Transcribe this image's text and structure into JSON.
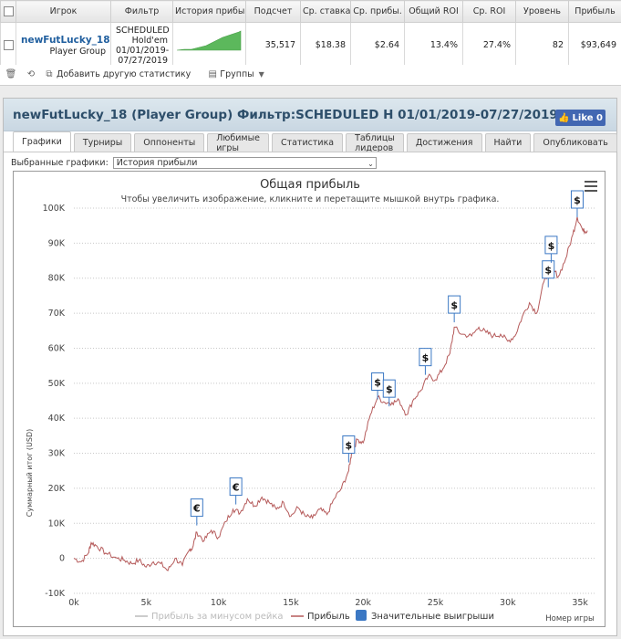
{
  "table": {
    "headers": [
      "Игрок",
      "Фильтр",
      "История прибы",
      "Подсчет",
      "Ср. ставка",
      "Ср. прибы.",
      "Общий ROI",
      "Ср. ROI",
      "Уровень",
      "Прибыль"
    ],
    "row": {
      "player_name": "newFutLucky_18",
      "player_type": "Player Group",
      "filter_line1": "SCHEDULED",
      "filter_line2": "Hold'em",
      "filter_line3": "01/01/2019-",
      "filter_line4": "07/27/2019",
      "count": "35,517",
      "avg_stake": "$18.38",
      "avg_profit": "$2.64",
      "total_roi": "13.4%",
      "avg_roi": "27.4%",
      "level": "82",
      "profit": "$93,649"
    }
  },
  "toolbar": {
    "add_stat_label": "Добавить другую статистику",
    "groups_label": "Группы"
  },
  "panel": {
    "title": "newFutLucky_18 (Player Group) Фильтр:SCHEDULED H 01/01/2019-07/27/2019",
    "like_label": "Like 0",
    "tabs": [
      "Графики",
      "Турниры",
      "Оппоненты",
      "Любимые игры",
      "Статистика",
      "Таблицы лидеров",
      "Достижения",
      "Найти",
      "Опубликовать"
    ],
    "selector_label": "Выбранные графики:",
    "selector_value": "История прибыли"
  },
  "chart_data": {
    "type": "line",
    "title": "Общая прибыль",
    "subtitle": "Чтобы увеличить изображение, кликните и перетащите мышкой внутрь графика.",
    "ylabel": "Суммарный итог (USD)",
    "xlabel": "Номер игры",
    "ylim": [
      -10000,
      100000
    ],
    "xlim": [
      0,
      36000
    ],
    "yticks": [
      -10000,
      0,
      10000,
      20000,
      30000,
      40000,
      50000,
      60000,
      70000,
      80000,
      90000,
      100000
    ],
    "ytick_labels": [
      "-10K",
      "0",
      "10K",
      "20K",
      "30K",
      "40K",
      "50K",
      "60K",
      "70K",
      "80K",
      "90K",
      "100K"
    ],
    "xticks": [
      0,
      5000,
      10000,
      15000,
      20000,
      25000,
      30000,
      35000
    ],
    "xtick_labels": [
      "0k",
      "5k",
      "10k",
      "15k",
      "20k",
      "25k",
      "30k",
      "35k"
    ],
    "grid": "horizontal dotted",
    "legend_placement": "bottom",
    "series": [
      {
        "name": "Прибыль за минусом рейка",
        "color": "#cccccc",
        "visible": false
      },
      {
        "name": "Прибыль",
        "color": "#b55a5a",
        "x": [
          0,
          500,
          1000,
          1200,
          1600,
          2200,
          3000,
          3500,
          4000,
          4500,
          5000,
          5500,
          6000,
          6500,
          7000,
          7500,
          8000,
          8200,
          8500,
          9000,
          9500,
          10000,
          10500,
          11000,
          11500,
          12000,
          12500,
          13000,
          13500,
          14000,
          14500,
          15000,
          15500,
          16000,
          16500,
          17000,
          17500,
          18000,
          18500,
          19000,
          19200,
          19600,
          20000,
          20500,
          21000,
          21500,
          22000,
          22500,
          23000,
          23500,
          24000,
          24500,
          25000,
          25500,
          26000,
          26300,
          26800,
          27500,
          28000,
          28500,
          29000,
          29500,
          30000,
          30500,
          31000,
          31500,
          32000,
          32500,
          33000,
          33500,
          34000,
          34500,
          34800,
          35200,
          35500
        ],
        "values": [
          0,
          -1000,
          1500,
          4500,
          3500,
          1500,
          0,
          -500,
          -1500,
          -500,
          -2500,
          -1000,
          -1500,
          -3500,
          0,
          -2000,
          2500,
          3000,
          7500,
          5000,
          8000,
          6000,
          10500,
          14000,
          13000,
          17000,
          15000,
          17500,
          16000,
          14000,
          16000,
          12000,
          14500,
          12000,
          11500,
          14000,
          12500,
          17000,
          20000,
          25000,
          30000,
          34000,
          33000,
          41000,
          46000,
          44500,
          44500,
          45000,
          41000,
          45500,
          48000,
          52000,
          51000,
          54000,
          58500,
          66000,
          64000,
          63500,
          66000,
          64500,
          63500,
          64000,
          62000,
          63500,
          69000,
          73000,
          70000,
          79000,
          83000,
          80500,
          85500,
          92500,
          97500,
          93500,
          93600
        ]
      },
      {
        "name": "Значительные выигрыши",
        "color": "#3b78c4",
        "markers": [
          {
            "x": 8500,
            "value": 12000,
            "label": "€"
          },
          {
            "x": 11200,
            "value": 18000,
            "label": "€"
          },
          {
            "x": 19000,
            "value": 30000,
            "label": "$"
          },
          {
            "x": 21000,
            "value": 48000,
            "label": "$"
          },
          {
            "x": 21800,
            "value": 46000,
            "label": "$"
          },
          {
            "x": 24300,
            "value": 55000,
            "label": "$"
          },
          {
            "x": 26300,
            "value": 70000,
            "label": "$"
          },
          {
            "x": 32800,
            "value": 80000,
            "label": "$"
          },
          {
            "x": 33000,
            "value": 87000,
            "label": "$"
          },
          {
            "x": 34800,
            "value": 100000,
            "label": "$"
          }
        ]
      }
    ]
  }
}
